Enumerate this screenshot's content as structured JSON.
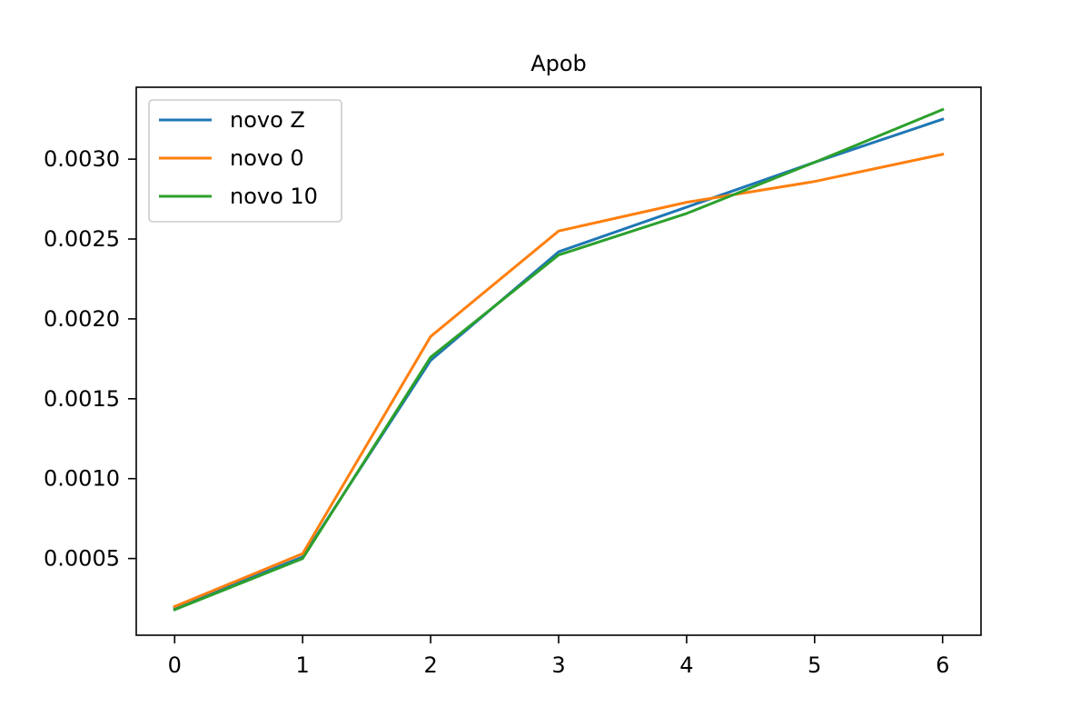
{
  "chart_data": {
    "type": "line",
    "title": "Apob",
    "xlabel": "",
    "ylabel": "",
    "x": [
      0,
      1,
      2,
      3,
      4,
      5,
      6
    ],
    "xlim": [
      -0.3,
      6.3
    ],
    "ylim": [
      2e-05,
      0.00345
    ],
    "x_ticks": [
      0,
      1,
      2,
      3,
      4,
      5,
      6
    ],
    "x_tick_labels": [
      "0",
      "1",
      "2",
      "3",
      "4",
      "5",
      "6"
    ],
    "y_ticks": [
      0.0005,
      0.001,
      0.0015,
      0.002,
      0.0025,
      0.003
    ],
    "y_tick_labels": [
      "0.0005",
      "0.0010",
      "0.0015",
      "0.0020",
      "0.0025",
      "0.0030"
    ],
    "grid": false,
    "legend_position": "top-left",
    "series": [
      {
        "name": "novo Z",
        "color": "#1f77b4",
        "values": [
          0.00019,
          0.00051,
          0.00174,
          0.00242,
          0.0027,
          0.00298,
          0.00325
        ]
      },
      {
        "name": "novo 0",
        "color": "#ff7f0e",
        "values": [
          0.0002,
          0.00053,
          0.00189,
          0.00255,
          0.00273,
          0.00286,
          0.00303
        ]
      },
      {
        "name": "novo 10",
        "color": "#2ca02c",
        "values": [
          0.00018,
          0.0005,
          0.00176,
          0.0024,
          0.00266,
          0.00298,
          0.00331
        ]
      }
    ]
  }
}
